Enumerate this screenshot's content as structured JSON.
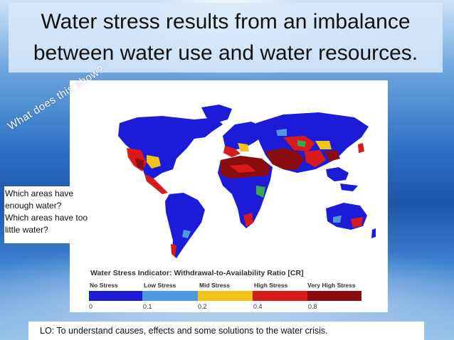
{
  "slide": {
    "title_line1": "Water stress results from an imbalance",
    "title_line2": "between water use and water resources.",
    "rotated_question": "What does this show?",
    "questions": [
      "Which areas have",
      "enough water?",
      "Which areas have too",
      "little water?"
    ],
    "learning_objective": "LO: To understand causes, effects and some solutions to the water crisis."
  },
  "legend": {
    "title": "Water Stress Indicator: Withdrawal-to-Availability Ratio [CR]",
    "categories": [
      {
        "label": "No Stress",
        "color": "#1c1cd8"
      },
      {
        "label": "Low Stress",
        "color": "#4f97e0"
      },
      {
        "label": "Mid Stress",
        "color": "#f0c419"
      },
      {
        "label": "High Stress",
        "color": "#d81a1a"
      },
      {
        "label": "Very High Stress",
        "color": "#8a0c0c"
      }
    ],
    "ticks": [
      "0",
      "0.1",
      "0.2",
      "0.4",
      "0.8"
    ]
  },
  "colors": {
    "ocean": "#ffffff",
    "land_no_stress": "#1c1cd8",
    "land_low": "#4f97e0",
    "land_mid": "#f0c419",
    "land_high": "#d81a1a",
    "land_very_high": "#8a0c0c",
    "land_arid": "#e8e8e8",
    "green_patch": "#3aa65a"
  }
}
